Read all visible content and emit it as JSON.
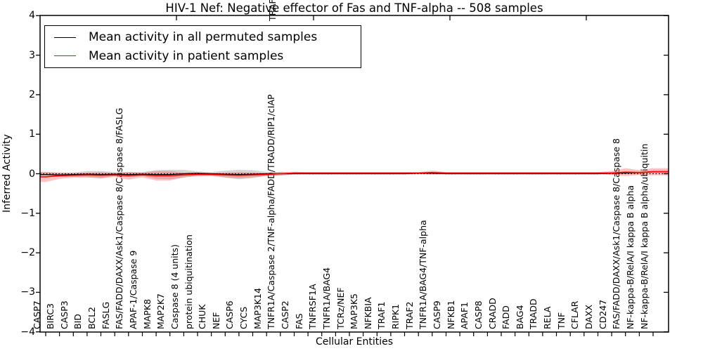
{
  "title": "HIV-1 Nef: Negative effector of Fas and TNF-alpha -- 508 samples",
  "axes": {
    "xlabel": "Cellular Entities",
    "ylabel": "Inferred Activity",
    "yticks": [
      "4",
      "3",
      "2",
      "1",
      "0",
      "−1",
      "−2",
      "−3",
      "−4"
    ],
    "ylim": [
      -4,
      4
    ]
  },
  "legend": {
    "entries": [
      {
        "label": "Mean activity in all permuted samples",
        "color": "#000000"
      },
      {
        "label": "Mean activity in patient samples",
        "color": "#ff0000"
      }
    ],
    "position": "upper left"
  },
  "chart_data": {
    "type": "line",
    "title": "HIV-1 Nef: Negative effector of Fas and TNF-alpha -- 508 samples",
    "xlabel": "Cellular Entities",
    "ylabel": "Inferred Activity",
    "ylim": [
      -4,
      4
    ],
    "grid": false,
    "zero_line_style": "dotted",
    "legend_position": "upper left",
    "categories": [
      "CASP7",
      "BIRC3",
      "CASP3",
      "BID",
      "BCL2",
      "FASLG",
      "FAS/FADD/DAXX/Ask1/Caspase 8/Caspase 8/FASLG",
      "APAF-1/Caspase 9",
      "MAPK8",
      "MAP2K7",
      "Caspase 8 (4 units)",
      "protein ubiquitination",
      "CHUK",
      "NEF",
      "CASP6",
      "CYCS",
      "MAP3K14",
      "TNFR1A/Caspase 2/TNF-alpha/FADD/TRADD/RIP1/cIAP",
      "CASP2",
      "FAS",
      "TNFRSF1A",
      "TNFR1A/BAG4",
      "TCRz/NEF",
      "MAP3K5",
      "NFKBIA",
      "TRAF1",
      "RIPK1",
      "TRAF2",
      "TNFR1A/BAG4/TNF-alpha",
      "CASP9",
      "NFKB1",
      "APAF1",
      "CASP8",
      "CRADD",
      "FADD",
      "BAG4",
      "TRADD",
      "RELA",
      "TNF",
      "CFLAR",
      "DAXX",
      "CD247",
      "FAS/FADD/DAXX/Ask1/Caspase 8/Caspase 8",
      "NF-kappa-B/RelA/I kappa B alpha",
      "NF-kappa-B/RelA/I kappa B alpha/ubiquitin"
    ],
    "x_overflow_fragment": {
      "index": 17,
      "text": "TRAF"
    },
    "series": [
      {
        "name": "Mean activity in all permuted samples",
        "color": "#000000",
        "band_color": "#999999",
        "band_opacity": 0.38,
        "values": [
          -0.02,
          -0.03,
          -0.02,
          -0.01,
          -0.02,
          -0.01,
          -0.02,
          -0.01,
          -0.02,
          -0.02,
          0.0,
          0.01,
          0.0,
          -0.01,
          -0.02,
          -0.01,
          0.0,
          0.0,
          0.0,
          0.0,
          0.0,
          0.0,
          0.0,
          0.0,
          0.0,
          0.0,
          0.0,
          0.01,
          0.01,
          0.0,
          0.0,
          0.0,
          0.0,
          0.0,
          0.0,
          0.0,
          0.0,
          0.0,
          0.0,
          0.0,
          0.0,
          0.01,
          0.02,
          0.03,
          0.05
        ],
        "band": [
          0.06,
          0.05,
          0.05,
          0.08,
          0.09,
          0.05,
          0.06,
          0.05,
          0.11,
          0.12,
          0.1,
          0.05,
          0.04,
          0.09,
          0.12,
          0.1,
          0.05,
          0.04,
          0.02,
          0.02,
          0.02,
          0.02,
          0.02,
          0.02,
          0.02,
          0.02,
          0.02,
          0.02,
          0.02,
          0.02,
          0.02,
          0.02,
          0.02,
          0.02,
          0.02,
          0.02,
          0.02,
          0.02,
          0.02,
          0.02,
          0.02,
          0.02,
          0.03,
          0.03,
          0.04
        ]
      },
      {
        "name": "Mean activity in patient samples",
        "color": "#ff0000",
        "band_color": "#ff3333",
        "band_opacity": 0.3,
        "values": [
          -0.08,
          -0.05,
          -0.04,
          -0.03,
          -0.04,
          -0.03,
          -0.05,
          -0.03,
          -0.05,
          -0.05,
          -0.03,
          -0.02,
          -0.02,
          -0.03,
          -0.04,
          -0.03,
          -0.02,
          0.0,
          0.02,
          0.02,
          0.02,
          0.02,
          0.02,
          0.02,
          0.02,
          0.02,
          0.02,
          0.02,
          0.03,
          0.02,
          0.02,
          0.02,
          0.02,
          0.02,
          0.02,
          0.02,
          0.02,
          0.02,
          0.02,
          0.02,
          0.02,
          0.02,
          0.04,
          0.03,
          0.05
        ],
        "band": [
          0.13,
          0.08,
          0.06,
          0.06,
          0.08,
          0.05,
          0.1,
          0.06,
          0.12,
          0.12,
          0.06,
          0.05,
          0.04,
          0.06,
          0.08,
          0.06,
          0.04,
          0.05,
          0.03,
          0.02,
          0.02,
          0.02,
          0.02,
          0.02,
          0.02,
          0.02,
          0.02,
          0.02,
          0.05,
          0.02,
          0.02,
          0.02,
          0.02,
          0.02,
          0.02,
          0.02,
          0.02,
          0.02,
          0.02,
          0.02,
          0.02,
          0.05,
          0.1,
          0.06,
          0.09
        ]
      }
    ]
  }
}
